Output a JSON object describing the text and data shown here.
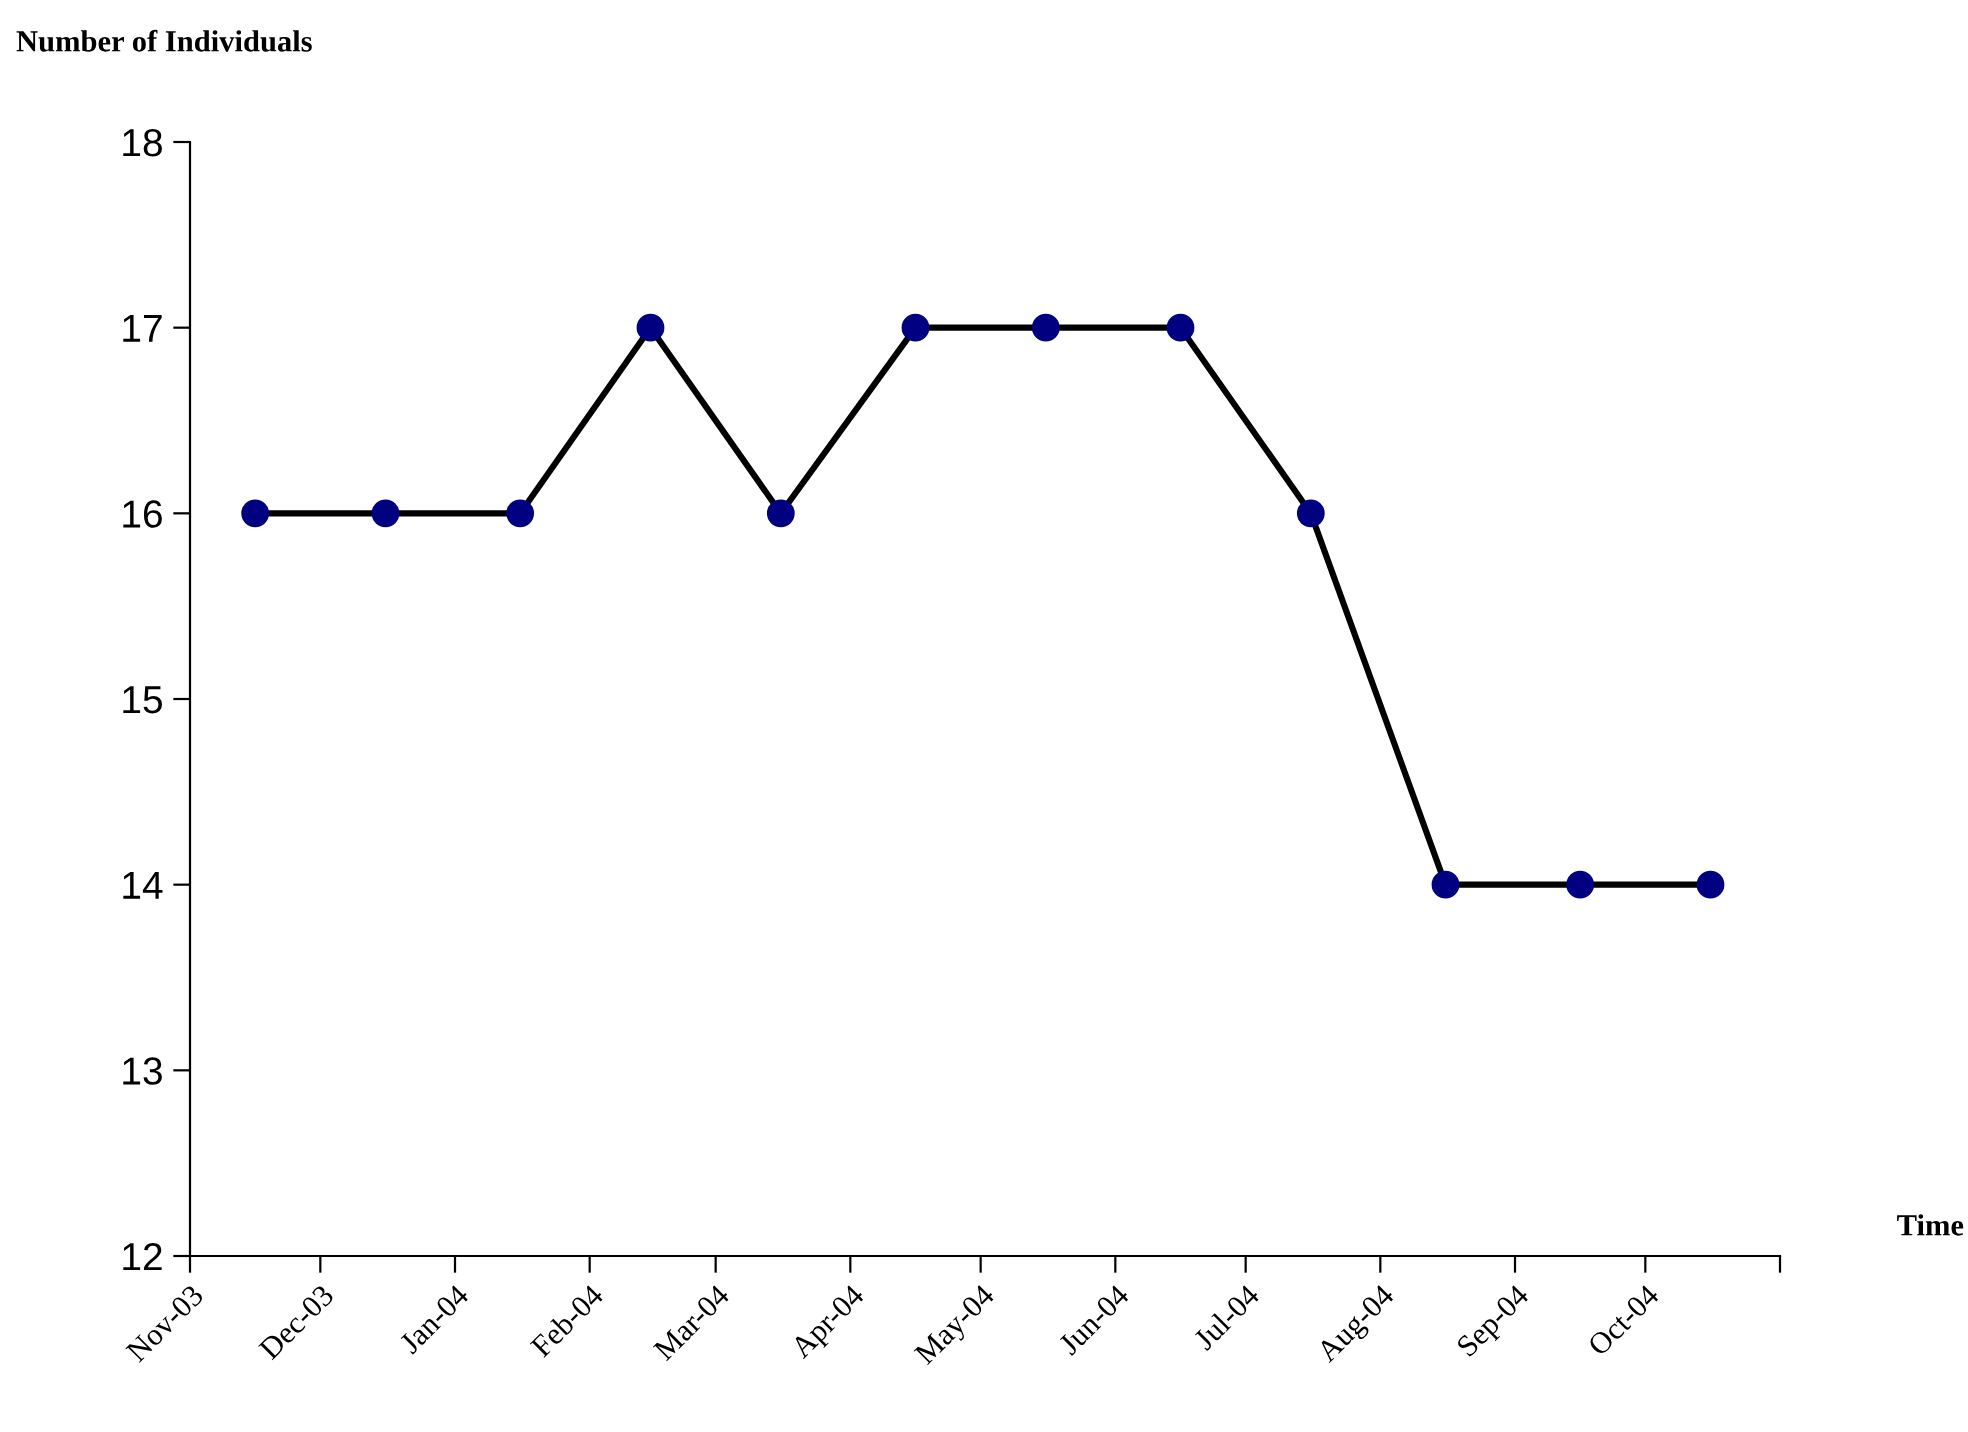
{
  "chart_data": {
    "type": "line",
    "xlabel": "Time",
    "ylabel": "Number of Individuals",
    "x": [
      "2003-11-16",
      "2003-12-16",
      "2004-01-16",
      "2004-02-15",
      "2004-03-16",
      "2004-04-16",
      "2004-05-16",
      "2004-06-16",
      "2004-07-16",
      "2004-08-16",
      "2004-09-16",
      "2004-10-16"
    ],
    "series": [
      {
        "color": "#000080",
        "values": [
          16,
          16,
          16,
          17,
          16,
          17,
          17,
          17,
          16,
          14,
          14,
          14
        ]
      }
    ],
    "xlim": [
      "2003-11-01",
      "2004-11-01"
    ],
    "xticks": [
      {
        "value": "2003-11-01",
        "label": "Nov-03"
      },
      {
        "value": "2003-12-01",
        "label": "Dec-03"
      },
      {
        "value": "2004-01-01",
        "label": "Jan-04"
      },
      {
        "value": "2004-02-01",
        "label": "Feb-04"
      },
      {
        "value": "2004-03-01",
        "label": "Mar-04"
      },
      {
        "value": "2004-04-01",
        "label": "Apr-04"
      },
      {
        "value": "2004-05-01",
        "label": "May-04"
      },
      {
        "value": "2004-06-01",
        "label": "Jun-04"
      },
      {
        "value": "2004-07-01",
        "label": "Jul-04"
      },
      {
        "value": "2004-08-01",
        "label": "Aug-04"
      },
      {
        "value": "2004-09-01",
        "label": "Sep-04"
      },
      {
        "value": "2004-10-01",
        "label": "Oct-04"
      },
      {
        "value": "2004-11-01",
        "label": null
      }
    ],
    "ylim": [
      12,
      18
    ],
    "yticks": [
      12,
      13,
      14,
      15,
      16,
      17,
      18
    ],
    "grid": false,
    "legend": false,
    "marker": "circle",
    "line_style": "solid"
  }
}
